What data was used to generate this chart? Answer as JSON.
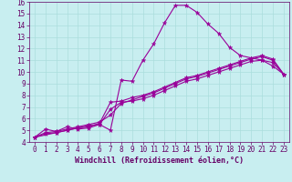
{
  "xlabel": "Windchill (Refroidissement éolien,°C)",
  "background_color": "#c8eef0",
  "line_color": "#990099",
  "grid_color": "#aadddd",
  "xlim": [
    -0.5,
    23.5
  ],
  "ylim": [
    4,
    16
  ],
  "xticks": [
    0,
    1,
    2,
    3,
    4,
    5,
    6,
    7,
    8,
    9,
    10,
    11,
    12,
    13,
    14,
    15,
    16,
    17,
    18,
    19,
    20,
    21,
    22,
    23
  ],
  "yticks": [
    4,
    5,
    6,
    7,
    8,
    9,
    10,
    11,
    12,
    13,
    14,
    15,
    16
  ],
  "lines": [
    {
      "x": [
        0,
        1,
        2,
        3,
        4,
        5,
        6,
        7,
        8,
        9,
        10,
        11,
        12,
        13,
        14,
        15,
        16,
        17,
        18,
        19,
        20,
        21,
        22,
        23
      ],
      "y": [
        4.4,
        5.1,
        4.9,
        5.3,
        5.1,
        5.2,
        5.5,
        5.0,
        9.3,
        9.2,
        11.0,
        12.4,
        14.2,
        15.7,
        15.7,
        15.1,
        14.1,
        13.3,
        12.1,
        11.4,
        11.2,
        11.0,
        10.5,
        9.8
      ]
    },
    {
      "x": [
        0,
        1,
        2,
        3,
        4,
        5,
        6,
        7,
        8,
        9,
        10,
        11,
        12,
        13,
        14,
        15,
        16,
        17,
        18,
        19,
        20,
        21,
        22,
        23
      ],
      "y": [
        4.4,
        4.8,
        4.9,
        5.1,
        5.3,
        5.5,
        5.7,
        6.3,
        7.3,
        7.6,
        7.9,
        8.2,
        8.6,
        9.0,
        9.4,
        9.6,
        9.9,
        10.2,
        10.5,
        10.8,
        11.1,
        11.3,
        11.0,
        9.8
      ]
    },
    {
      "x": [
        0,
        1,
        2,
        3,
        4,
        5,
        6,
        7,
        8,
        9,
        10,
        11,
        12,
        13,
        14,
        15,
        16,
        17,
        18,
        19,
        20,
        21,
        22,
        23
      ],
      "y": [
        4.4,
        4.7,
        4.8,
        5.0,
        5.2,
        5.4,
        5.5,
        6.8,
        7.4,
        7.5,
        7.7,
        8.0,
        8.4,
        8.8,
        9.2,
        9.4,
        9.7,
        10.0,
        10.3,
        10.6,
        10.9,
        11.0,
        10.8,
        9.8
      ]
    },
    {
      "x": [
        0,
        2,
        3,
        4,
        5,
        6,
        7,
        8,
        9,
        10,
        11,
        12,
        13,
        14,
        15,
        16,
        17,
        18,
        19,
        20,
        21,
        22,
        23
      ],
      "y": [
        4.4,
        4.8,
        5.0,
        5.2,
        5.3,
        5.6,
        7.4,
        7.5,
        7.8,
        8.0,
        8.3,
        8.7,
        9.1,
        9.5,
        9.7,
        10.0,
        10.3,
        10.6,
        10.9,
        11.2,
        11.4,
        11.1,
        9.8
      ]
    }
  ],
  "tick_color": "#660066",
  "label_color": "#660066",
  "font_size": 5.5,
  "xlabel_font_size": 6.0
}
